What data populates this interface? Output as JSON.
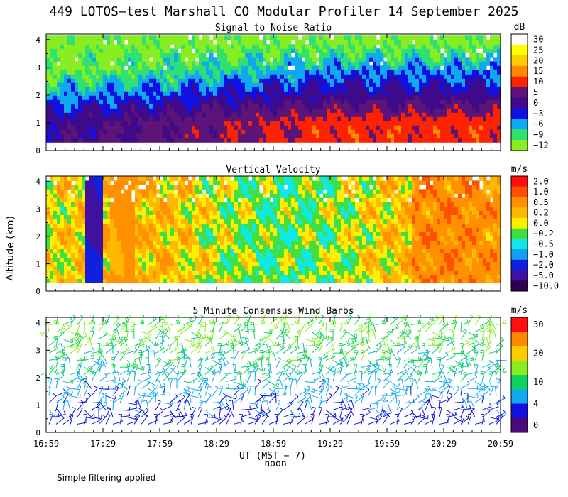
{
  "chart_data": {
    "type": "heatmap",
    "title": "449 LOTOS—test Marshall CO Modular Profiler 14 September 2025",
    "ylabel": "Altitude (km)",
    "xlabel": "UT  (MST − 7)",
    "xlabel_sub": "noon",
    "footnote": "Simple filtering applied",
    "x_ticks": [
      "16:59",
      "17:29",
      "17:59",
      "18:29",
      "18:59",
      "19:29",
      "19:59",
      "20:29",
      "20:59"
    ],
    "x_range_hours": [
      16.983,
      20.983
    ],
    "y_ticks": [
      "0",
      "1",
      "2",
      "3",
      "4"
    ],
    "y_range_km": [
      0,
      4.2
    ],
    "data_bottom_km": 0.3,
    "data_top_km": 4.1,
    "panels": [
      {
        "title": "Signal to Noise Ratio",
        "units": "dB",
        "colorbar": {
          "labels": [
            "30",
            "25",
            "20",
            "15",
            "10",
            "5",
            "0",
            "−3",
            "−6",
            "−9",
            "−12"
          ],
          "colors": [
            "#ffffff",
            "#ffff00",
            "#ffcc00",
            "#ff8800",
            "#ff2200",
            "#5c1478",
            "#3e0a8a",
            "#1010e0",
            "#10a8f0",
            "#30e070",
            "#88ee22"
          ]
        },
        "profile_dB": [
          {
            "altitude_km": 0.4,
            "early": 0,
            "late": 10
          },
          {
            "altitude_km": 1.0,
            "early": 0,
            "late": 10
          },
          {
            "altitude_km": 1.5,
            "early": -3,
            "late": 5
          },
          {
            "altitude_km": 2.0,
            "early": -6,
            "late": 0
          },
          {
            "altitude_km": 2.5,
            "early": -9,
            "late": -3
          },
          {
            "altitude_km": 3.0,
            "early": -12,
            "late": -6
          },
          {
            "altitude_km": 3.5,
            "early": -12,
            "late": -9
          },
          {
            "altitude_km": 4.0,
            "early": -12,
            "late": -12
          }
        ]
      },
      {
        "title": "Vertical Velocity",
        "units": "m/s",
        "colorbar": {
          "labels": [
            "2.0",
            "1.0",
            "0.5",
            "0.2",
            "0.0",
            "−0.2",
            "−0.5",
            "−1.0",
            "−2.0",
            "−5.0",
            "−10.0"
          ],
          "colors": [
            "#ff1010",
            "#ff5000",
            "#ff9000",
            "#ffb800",
            "#ffee00",
            "#40e040",
            "#10e8e8",
            "#10a0f0",
            "#1020e0",
            "#4010a0",
            "#300050"
          ]
        },
        "range_m_s": [
          -10,
          2
        ]
      },
      {
        "title": "5 Minute Consensus Wind Barbs",
        "units": "m/s",
        "type": "wind_barbs",
        "colorbar": {
          "labels": [
            "30",
            "20",
            "10",
            "4",
            "0"
          ],
          "colors": [
            "#ff1010",
            "#ff8800",
            "#ffcc00",
            "#88ee22",
            "#10d060",
            "#10a8f0",
            "#1010e0",
            "#4a0a78"
          ]
        },
        "speed_profile_m_s": [
          {
            "altitude_km": 0.5,
            "speed": 3
          },
          {
            "altitude_km": 1.5,
            "speed": 5
          },
          {
            "altitude_km": 2.5,
            "speed": 8
          },
          {
            "altitude_km": 3.5,
            "speed": 10
          }
        ]
      }
    ]
  }
}
